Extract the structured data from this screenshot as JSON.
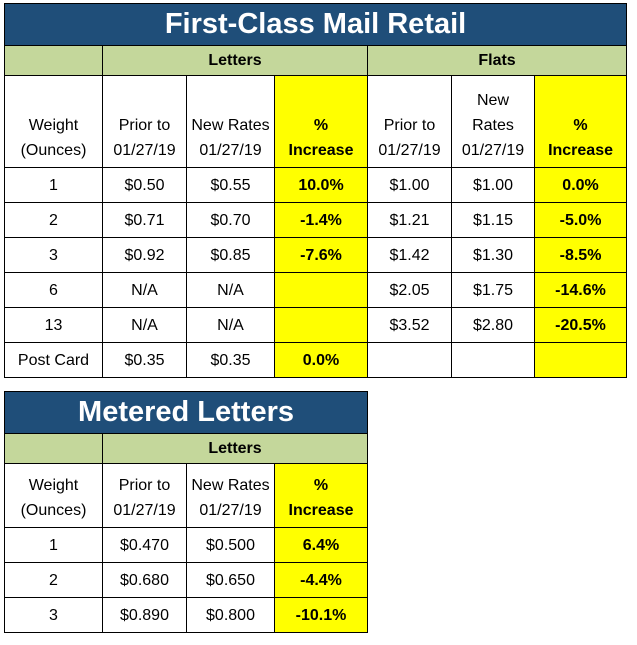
{
  "retail": {
    "title": "First-Class Mail Retail",
    "group_letters": "Letters",
    "group_flats": "Flats",
    "headers": {
      "weight": [
        "Weight",
        "(Ounces)"
      ],
      "letters_prior": [
        "Prior to",
        "01/27/19"
      ],
      "letters_new": [
        "New Rates",
        "01/27/19"
      ],
      "letters_pct": [
        "%",
        "Increase"
      ],
      "flats_prior": [
        "Prior to",
        "01/27/19"
      ],
      "flats_new": [
        "New",
        "Rates",
        "01/27/19"
      ],
      "flats_pct": [
        "%",
        "Increase"
      ]
    },
    "rows": [
      {
        "weight": "1",
        "lp": "$0.50",
        "ln": "$0.55",
        "lpct": "10.0%",
        "fp": "$1.00",
        "fn": "$1.00",
        "fpct": "0.0%"
      },
      {
        "weight": "2",
        "lp": "$0.71",
        "ln": "$0.70",
        "lpct": "-1.4%",
        "fp": "$1.21",
        "fn": "$1.15",
        "fpct": "-5.0%"
      },
      {
        "weight": "3",
        "lp": "$0.92",
        "ln": "$0.85",
        "lpct": "-7.6%",
        "fp": "$1.42",
        "fn": "$1.30",
        "fpct": "-8.5%"
      },
      {
        "weight": "6",
        "lp": "N/A",
        "ln": "N/A",
        "lpct": "",
        "fp": "$2.05",
        "fn": "$1.75",
        "fpct": "-14.6%"
      },
      {
        "weight": "13",
        "lp": "N/A",
        "ln": "N/A",
        "lpct": "",
        "fp": "$3.52",
        "fn": "$2.80",
        "fpct": "-20.5%"
      },
      {
        "weight": "Post Card",
        "lp": "$0.35",
        "ln": "$0.35",
        "lpct": "0.0%",
        "fp": "",
        "fn": "",
        "fpct": ""
      }
    ]
  },
  "metered": {
    "title": "Metered Letters",
    "group_letters": "Letters",
    "headers": {
      "weight": [
        "Weight",
        "(Ounces)"
      ],
      "prior": [
        "Prior to",
        "01/27/19"
      ],
      "new": [
        "New Rates",
        "01/27/19"
      ],
      "pct": [
        "%",
        "Increase"
      ]
    },
    "rows": [
      {
        "weight": "1",
        "p": "$0.470",
        "n": "$0.500",
        "pct": "6.4%"
      },
      {
        "weight": "2",
        "p": "$0.680",
        "n": "$0.650",
        "pct": "-4.4%"
      },
      {
        "weight": "3",
        "p": "$0.890",
        "n": "$0.800",
        "pct": "-10.1%"
      }
    ]
  },
  "colors": {
    "title_bg": "#1f4e79",
    "band_bg": "#c4d79b",
    "highlight": "#ffff00"
  }
}
